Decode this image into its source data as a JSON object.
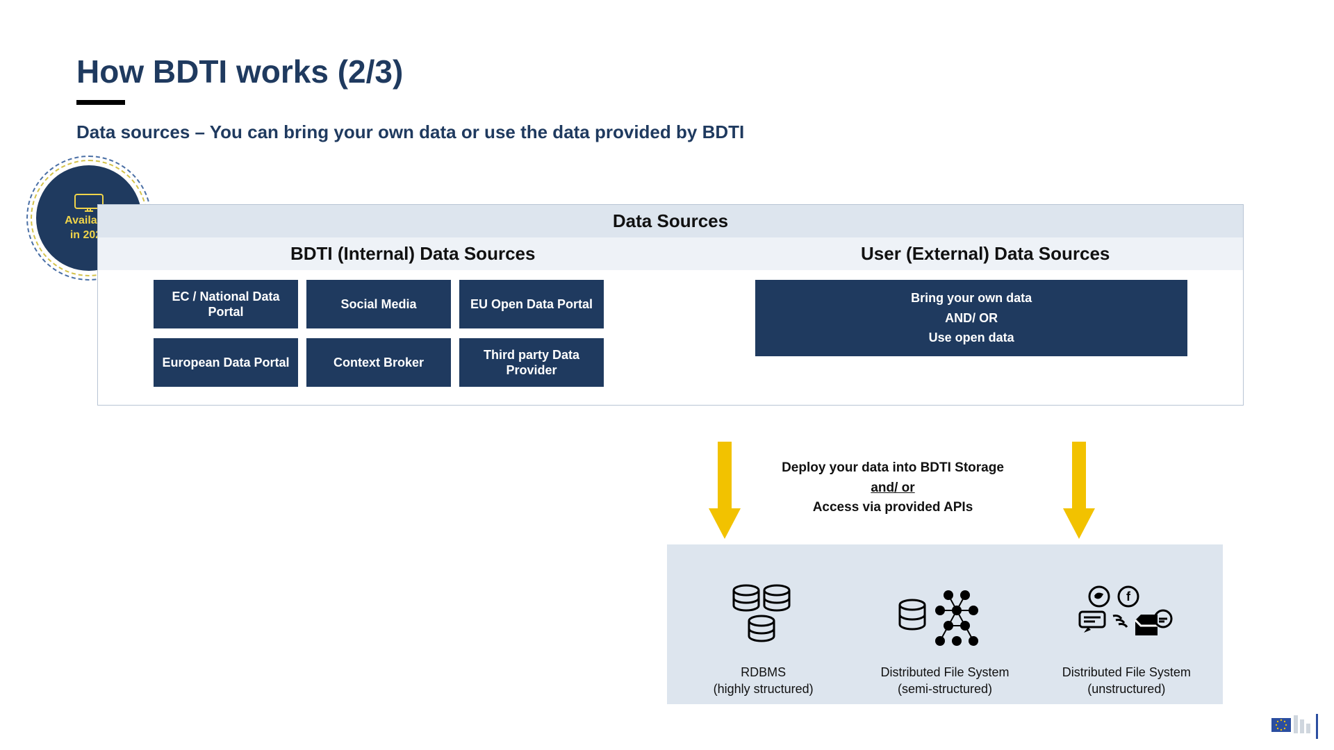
{
  "colors": {
    "heading": "#1f3a5f",
    "card_bg": "#1f3a5f",
    "card_text": "#ffffff",
    "panel_bg": "#dde5ee",
    "panel_light": "#eef2f7",
    "arrow": "#f2c200",
    "badge_text": "#f0d44a",
    "border": "#b8c4d4"
  },
  "title": "How BDTI works (2/3)",
  "subtitle": "Data sources – You can bring your own data or use the data provided by BDTI",
  "badge": {
    "line1": "Available",
    "line2": "in 2020"
  },
  "sources": {
    "header": "Data Sources",
    "left_header": "BDTI (Internal) Data Sources",
    "right_header": "User (External) Data Sources",
    "internal": [
      [
        "EC / National Data Portal",
        "Social Media",
        "EU Open Data Portal"
      ],
      [
        "European Data Portal",
        "Context Broker",
        "Third party Data Provider"
      ]
    ],
    "external": "Bring your own data\nAND/ OR\nUse open data"
  },
  "deploy": {
    "line1": "Deploy your data into BDTI Storage",
    "andor": "and/ or",
    "line2": "Access via provided APIs"
  },
  "storage": [
    {
      "title": "RDBMS",
      "sub": "(highly structured)",
      "icon": "db-cluster"
    },
    {
      "title": "Distributed File System",
      "sub": "(semi-structured)",
      "icon": "db-dots"
    },
    {
      "title": "Distributed File System",
      "sub": "(unstructured)",
      "icon": "social-cluster"
    }
  ],
  "footer_label": "European Commission"
}
